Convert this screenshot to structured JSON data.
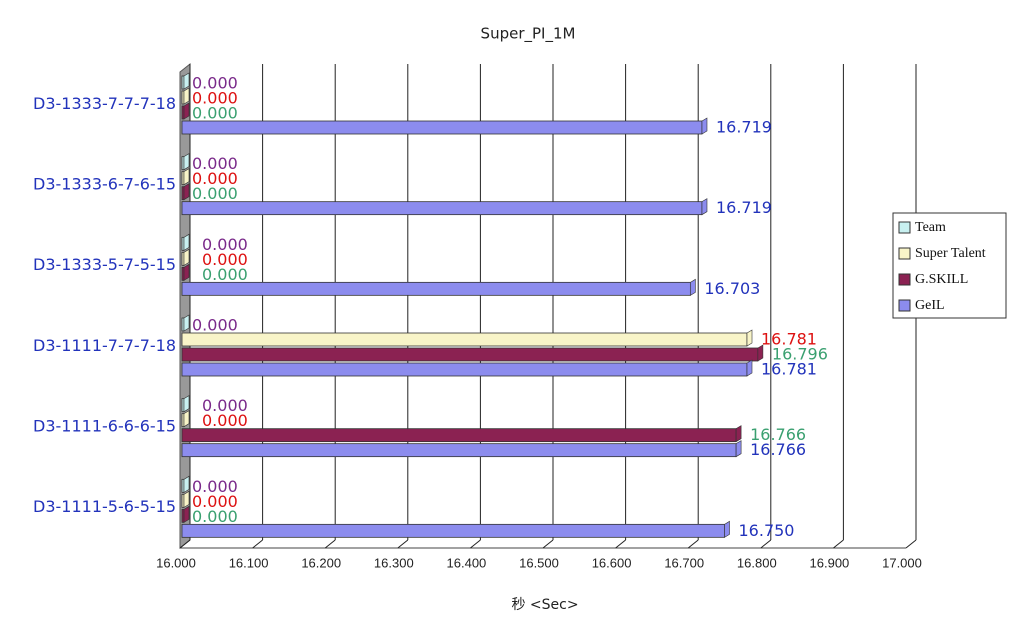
{
  "chart_data": {
    "type": "bar",
    "orientation": "horizontal",
    "title": "Super_PI_1M",
    "x_label": "秒 <Sec>",
    "categories": [
      "D3-1333-7-7-7-18",
      "D3-1333-6-7-6-15",
      "D3-1333-5-7-5-15",
      "D3-1111-7-7-7-18",
      "D3-1111-6-6-6-15",
      "D3-1111-5-6-5-15"
    ],
    "series": [
      {
        "name": "Team",
        "color": "#c8f0f0",
        "label_color": "#7a2a8a",
        "values": [
          0,
          0,
          0,
          0,
          0,
          0
        ],
        "value_labels": [
          "0.000",
          "0.000",
          "0.000",
          "0.000",
          "0.000",
          "0.000"
        ]
      },
      {
        "name": "Super Talent",
        "color": "#f8f4c8",
        "label_color": "#dd1111",
        "values": [
          0,
          0,
          0,
          16.781,
          0,
          0
        ],
        "value_labels": [
          "0.000",
          "0.000",
          "0.000",
          "16.781",
          "0.000",
          "0.000"
        ]
      },
      {
        "name": "G.SKILL",
        "color": "#8b2252",
        "label_color": "#3aa070",
        "values": [
          0,
          0,
          0,
          16.796,
          16.766,
          0
        ],
        "value_labels": [
          "0.000",
          "0.000",
          "0.000",
          "16.796",
          "16.766",
          "0.000"
        ]
      },
      {
        "name": "GeIL",
        "color": "#8c8cee",
        "label_color": "#2233bb",
        "values": [
          16.719,
          16.719,
          16.703,
          16.781,
          16.766,
          16.75
        ],
        "value_labels": [
          "16.719",
          "16.719",
          "16.703",
          "16.781",
          "16.766",
          "16.750"
        ]
      }
    ],
    "xlim": [
      16,
      17
    ],
    "xticks": [
      {
        "value": 16,
        "label": "16.000"
      },
      {
        "value": 16.1,
        "label": "16.100"
      },
      {
        "value": 16.2,
        "label": "16.200"
      },
      {
        "value": 16.3,
        "label": "16.300"
      },
      {
        "value": 16.4,
        "label": "16.400"
      },
      {
        "value": 16.5,
        "label": "16.500"
      },
      {
        "value": 16.6,
        "label": "16.600"
      },
      {
        "value": 16.7,
        "label": "16.700"
      },
      {
        "value": 16.8,
        "label": "16.800"
      },
      {
        "value": 16.9,
        "label": "16.900"
      },
      {
        "value": 17,
        "label": "17.000"
      }
    ],
    "grid": true,
    "legend": "right"
  }
}
